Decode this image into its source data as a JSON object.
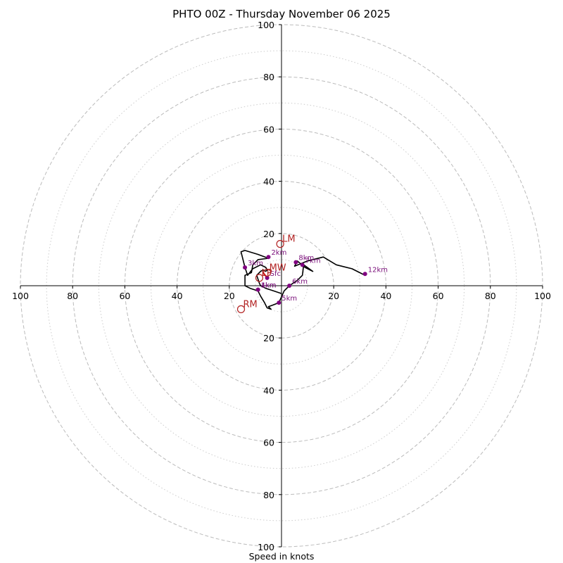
{
  "chart_data": {
    "type": "hodograph",
    "title": "PHTO 00Z - Thursday November 06 2025",
    "xlabel": "Speed in knots",
    "ring_ticks": [
      20,
      40,
      60,
      80,
      100
    ],
    "radius_max": 100,
    "trace": [
      [
        0.0,
        -3.0
      ],
      [
        -3.0,
        -2.0
      ],
      [
        -6.0,
        -1.0
      ],
      [
        -8.0,
        0.0
      ],
      [
        -8.5,
        1.0
      ],
      [
        -9.5,
        4.0
      ],
      [
        -8.0,
        5.5
      ],
      [
        -7.0,
        6.0
      ],
      [
        -6.0,
        5.5
      ],
      [
        -5.5,
        6.0
      ],
      [
        -6.0,
        7.0
      ],
      [
        -8.0,
        8.0
      ],
      [
        -11.0,
        6.5
      ],
      [
        -13.0,
        4.0
      ],
      [
        -14.0,
        7.0
      ],
      [
        -15.5,
        13.0
      ],
      [
        -14.0,
        13.5
      ],
      [
        -9.0,
        12.0
      ],
      [
        -5.0,
        10.5
      ],
      [
        -9.0,
        10.0
      ],
      [
        -11.0,
        8.0
      ],
      [
        -11.5,
        5.0
      ],
      [
        -14.0,
        4.0
      ],
      [
        -14.0,
        0.0
      ],
      [
        -12.0,
        -1.0
      ],
      [
        -9.0,
        -2.0
      ],
      [
        -8.0,
        -4.0
      ],
      [
        -6.5,
        -6.5
      ],
      [
        -5.5,
        -8.5
      ],
      [
        -4.0,
        -9.0
      ],
      [
        -5.0,
        -8.0
      ],
      [
        -3.5,
        -7.5
      ],
      [
        -1.0,
        -6.5
      ],
      [
        1.0,
        -2.0
      ],
      [
        3.0,
        0.0
      ],
      [
        6.0,
        2.0
      ],
      [
        8.0,
        4.0
      ],
      [
        8.5,
        8.0
      ],
      [
        12.0,
        5.5
      ],
      [
        9.0,
        7.0
      ],
      [
        6.0,
        9.5
      ],
      [
        5.0,
        7.5
      ],
      [
        10.0,
        9.5
      ],
      [
        16.0,
        11.0
      ],
      [
        21.0,
        8.0
      ],
      [
        27.0,
        6.5
      ],
      [
        32.0,
        4.0
      ]
    ],
    "height_points": [
      {
        "label": "Sfc",
        "u": -5.5,
        "v": 3.0
      },
      {
        "label": "1km",
        "u": -9.0,
        "v": -1.5
      },
      {
        "label": "2km",
        "u": -5.0,
        "v": 11.0
      },
      {
        "label": "3km",
        "u": -14.0,
        "v": 7.0
      },
      {
        "label": "4km",
        "u": -9.0,
        "v": -1.5
      },
      {
        "label": "5km",
        "u": -1.0,
        "v": -6.5
      },
      {
        "label": "6km",
        "u": 3.0,
        "v": 0.0
      },
      {
        "label": "7km",
        "u": 8.0,
        "v": 8.0
      },
      {
        "label": "8km",
        "u": 5.5,
        "v": 9.0
      },
      {
        "label": "12km",
        "u": 32.0,
        "v": 4.5
      }
    ],
    "motion_markers": [
      {
        "label": "LM",
        "u": -0.5,
        "v": 16.0
      },
      {
        "label": "RM",
        "u": -15.5,
        "v": -9.0
      },
      {
        "label": "LP",
        "u": -8.5,
        "v": 3.0
      },
      {
        "label": "MW",
        "u": -5.5,
        "v": 5.0
      }
    ],
    "shear_segment": [
      [
        -5.5,
        3.0
      ],
      [
        -7.0,
        5.0
      ]
    ],
    "colors": {
      "trace": "#000000",
      "height_marker": "#800080",
      "motion": "#b22222",
      "shear": "#ff0000",
      "grid": "#bbbbbb"
    }
  }
}
